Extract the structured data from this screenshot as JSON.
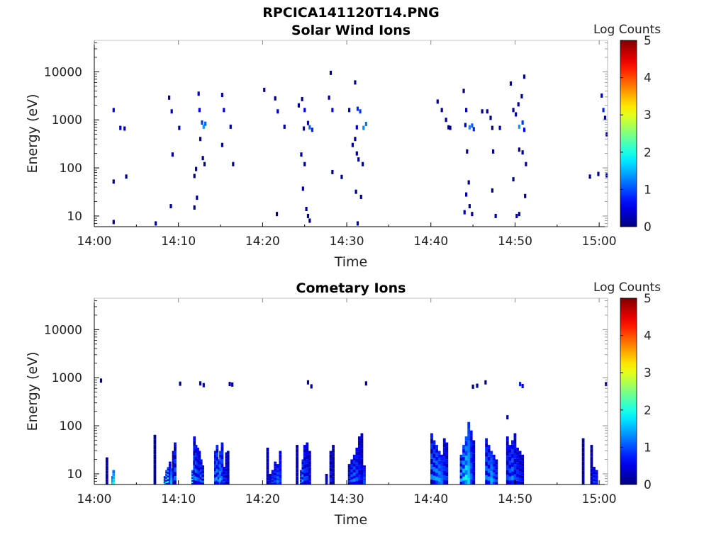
{
  "figure": {
    "title": "RPCICA141120T14.PNG"
  },
  "chart_data": [
    {
      "type": "heatmap",
      "title": "Solar Wind Ions",
      "xlabel": "Time",
      "ylabel": "Energy (eV)",
      "x_ticks": [
        "14:00",
        "14:10",
        "14:20",
        "14:30",
        "14:40",
        "14:50",
        "15:00"
      ],
      "xlim": [
        "14:00",
        "15:01"
      ],
      "y_ticks": [
        10,
        100,
        1000,
        10000
      ],
      "y_tick_labels": [
        "10",
        "100",
        "1000",
        "10000"
      ],
      "yscale": "log",
      "ylim": [
        6,
        45000
      ],
      "colorbar": {
        "label": "Log Counts",
        "ticks": [
          0,
          1,
          2,
          3,
          4,
          5
        ],
        "range": [
          0,
          5
        ],
        "colormap": "jet"
      },
      "x_units": "minutes after 14:00",
      "cells": [
        [
          2.3,
          1600,
          0.6
        ],
        [
          2.3,
          52,
          0.1
        ],
        [
          2.3,
          7.5,
          0.1
        ],
        [
          3.1,
          680,
          0.3
        ],
        [
          3.6,
          660,
          0.2
        ],
        [
          3.8,
          66,
          0.1
        ],
        [
          7.3,
          7,
          0.1
        ],
        [
          8.9,
          2900,
          0.1
        ],
        [
          9.2,
          1500,
          0.3
        ],
        [
          9.1,
          16,
          0.2
        ],
        [
          9.3,
          190,
          0.1
        ],
        [
          10.1,
          680,
          0.2
        ],
        [
          11.9,
          68,
          0.1
        ],
        [
          11.9,
          15,
          0.1
        ],
        [
          12.1,
          95,
          0.2
        ],
        [
          12.2,
          24,
          0.2
        ],
        [
          12.4,
          3500,
          0.4
        ],
        [
          12.5,
          1600,
          0.5
        ],
        [
          12.8,
          880,
          0.9
        ],
        [
          13.0,
          720,
          1.4
        ],
        [
          13.2,
          830,
          1.1
        ],
        [
          12.6,
          400,
          0.1
        ],
        [
          12.9,
          160,
          0.1
        ],
        [
          13.1,
          120,
          0.1
        ],
        [
          15.2,
          3300,
          0.3
        ],
        [
          15.4,
          1600,
          0.5
        ],
        [
          15.2,
          300,
          0.1
        ],
        [
          16.2,
          720,
          0.2
        ],
        [
          16.5,
          120,
          0.1
        ],
        [
          20.2,
          4200,
          0.1
        ],
        [
          21.5,
          2800,
          0.1
        ],
        [
          21.8,
          1500,
          0.4
        ],
        [
          21.7,
          11,
          0.1
        ],
        [
          22.6,
          720,
          0.2
        ],
        [
          24.3,
          2000,
          0.1
        ],
        [
          24.7,
          2700,
          0.2
        ],
        [
          25.0,
          1600,
          0.6
        ],
        [
          24.9,
          660,
          0.3
        ],
        [
          25.4,
          860,
          0.6
        ],
        [
          25.6,
          700,
          1.1
        ],
        [
          25.9,
          620,
          0.8
        ],
        [
          24.6,
          190,
          0.1
        ],
        [
          25.0,
          120,
          0.1
        ],
        [
          24.8,
          37,
          0.1
        ],
        [
          25.2,
          14,
          0.2
        ],
        [
          25.4,
          10,
          0.1
        ],
        [
          25.6,
          8,
          0.1
        ],
        [
          27.9,
          2900,
          0.2
        ],
        [
          28.3,
          1600,
          0.6
        ],
        [
          28.1,
          9500,
          0.1
        ],
        [
          28.3,
          82,
          0.1
        ],
        [
          29.4,
          65,
          0.1
        ],
        [
          30.3,
          1600,
          0.3
        ],
        [
          30.7,
          300,
          0.1
        ],
        [
          31.3,
          1700,
          0.8
        ],
        [
          31.6,
          1500,
          0.9
        ],
        [
          31.2,
          700,
          0.4
        ],
        [
          31.0,
          6000,
          0.1
        ],
        [
          31.2,
          200,
          0.1
        ],
        [
          31.4,
          150,
          0.1
        ],
        [
          31.1,
          32,
          0.1
        ],
        [
          31.7,
          25,
          0.1
        ],
        [
          31.9,
          120,
          0.1
        ],
        [
          32.0,
          680,
          1.3
        ],
        [
          32.3,
          820,
          1.2
        ],
        [
          31.3,
          7,
          0.2
        ],
        [
          31.0,
          400,
          0.1
        ],
        [
          40.8,
          2400,
          0.1
        ],
        [
          41.3,
          1600,
          0.1
        ],
        [
          41.8,
          1000,
          0.1
        ],
        [
          42.1,
          700,
          0.2
        ],
        [
          42.3,
          680,
          0.1
        ],
        [
          43.9,
          4000,
          0.1
        ],
        [
          44.2,
          1600,
          0.3
        ],
        [
          44.1,
          780,
          0.4
        ],
        [
          44.6,
          700,
          1.3
        ],
        [
          44.9,
          760,
          1.1
        ],
        [
          45.1,
          640,
          0.8
        ],
        [
          44.3,
          220,
          0.1
        ],
        [
          44.5,
          50,
          0.1
        ],
        [
          44.2,
          28,
          0.2
        ],
        [
          44.0,
          12,
          0.3
        ],
        [
          44.6,
          16,
          0.2
        ],
        [
          44.9,
          11,
          0.1
        ],
        [
          46.1,
          1500,
          0.1
        ],
        [
          46.7,
          1500,
          0.1
        ],
        [
          47.1,
          1100,
          0.1
        ],
        [
          47.3,
          680,
          0.2
        ],
        [
          47.4,
          220,
          0.1
        ],
        [
          47.3,
          34,
          0.1
        ],
        [
          47.7,
          10,
          0.2
        ],
        [
          48.2,
          680,
          0.2
        ],
        [
          49.5,
          5700,
          0.2
        ],
        [
          49.8,
          1600,
          0.1
        ],
        [
          50.1,
          1300,
          0.2
        ],
        [
          50.4,
          2100,
          0.1
        ],
        [
          50.8,
          3100,
          0.1
        ],
        [
          51.1,
          7900,
          0.1
        ],
        [
          50.5,
          720,
          1.4
        ],
        [
          50.9,
          880,
          0.9
        ],
        [
          51.1,
          620,
          0.6
        ],
        [
          50.5,
          240,
          0.1
        ],
        [
          50.9,
          210,
          0.1
        ],
        [
          51.3,
          120,
          0.1
        ],
        [
          51.2,
          26,
          0.1
        ],
        [
          50.2,
          10,
          0.3
        ],
        [
          50.5,
          11,
          0.2
        ],
        [
          49.8,
          58,
          0.1
        ],
        [
          58.9,
          66,
          0.1
        ],
        [
          59.9,
          75,
          0.1
        ],
        [
          60.3,
          3200,
          0.4
        ],
        [
          60.5,
          1600,
          0.8
        ],
        [
          60.7,
          1100,
          0.2
        ],
        [
          60.9,
          500,
          0.1
        ],
        [
          60.9,
          70,
          0.1
        ]
      ]
    },
    {
      "type": "heatmap",
      "title": "Cometary Ions",
      "xlabel": "Time",
      "ylabel": "Energy (eV)",
      "x_ticks": [
        "14:00",
        "14:10",
        "14:20",
        "14:30",
        "14:40",
        "14:50",
        "15:00"
      ],
      "xlim": [
        "14:00",
        "15:01"
      ],
      "y_ticks": [
        10,
        100,
        1000,
        10000
      ],
      "y_tick_labels": [
        "10",
        "100",
        "1000",
        "10000"
      ],
      "yscale": "log",
      "ylim": [
        6,
        45000
      ],
      "colorbar": {
        "label": "Log Counts",
        "ticks": [
          0,
          1,
          2,
          3,
          4,
          5
        ],
        "range": [
          0,
          5
        ],
        "colormap": "jet"
      },
      "x_units": "minutes after 14:00",
      "columns": [
        [
          1.5,
          22,
          0.3,
          0.2
        ],
        [
          2.2,
          9,
          1.6,
          1.0
        ],
        [
          2.3,
          12,
          2.2,
          1.8
        ],
        [
          7.2,
          65,
          0.1,
          0.1
        ],
        [
          8.4,
          9,
          1.8,
          0.1
        ],
        [
          8.6,
          12,
          1.9,
          0.4
        ],
        [
          8.8,
          14,
          2.2,
          0.5
        ],
        [
          9.0,
          18,
          0.9,
          0.6
        ],
        [
          9.2,
          13,
          1.8,
          1.7
        ],
        [
          9.4,
          30,
          0.8,
          0.2
        ],
        [
          9.6,
          45,
          1.2,
          0.3
        ],
        [
          11.7,
          12,
          2.0,
          0.3
        ],
        [
          11.9,
          60,
          1.2,
          0.2
        ],
        [
          12.1,
          40,
          1.4,
          0.5
        ],
        [
          12.3,
          35,
          1.1,
          0.6
        ],
        [
          12.5,
          30,
          1.0,
          0.4
        ],
        [
          12.7,
          20,
          1.3,
          0.5
        ],
        [
          12.9,
          15,
          1.2,
          0.3
        ],
        [
          14.4,
          30,
          1.3,
          0.4
        ],
        [
          14.6,
          40,
          1.5,
          0.5
        ],
        [
          14.8,
          20,
          1.4,
          0.6
        ],
        [
          15.0,
          30,
          1.7,
          1.2
        ],
        [
          15.2,
          45,
          1.3,
          0.7
        ],
        [
          15.4,
          14,
          1.0,
          0.4
        ],
        [
          15.7,
          28,
          0.8,
          0.2
        ],
        [
          15.9,
          30,
          0.5,
          0.2
        ],
        [
          20.6,
          35,
          0.3,
          0.1
        ],
        [
          20.9,
          10,
          0.8,
          0.1
        ],
        [
          21.2,
          12,
          1.0,
          0.3
        ],
        [
          21.5,
          18,
          1.0,
          0.6
        ],
        [
          21.8,
          16,
          1.3,
          0.9
        ],
        [
          22.1,
          30,
          0.9,
          0.7
        ],
        [
          24.1,
          40,
          0.3,
          0.2
        ],
        [
          24.6,
          12,
          1.3,
          0.3
        ],
        [
          24.8,
          20,
          1.6,
          0.5
        ],
        [
          25.0,
          40,
          1.0,
          0.4
        ],
        [
          25.3,
          45,
          0.9,
          0.5
        ],
        [
          25.6,
          30,
          0.5,
          0.3
        ],
        [
          27.6,
          10,
          0.8,
          0.1
        ],
        [
          28.1,
          30,
          0.8,
          0.1
        ],
        [
          28.4,
          40,
          0.4,
          0.1
        ],
        [
          30.3,
          16,
          0.9,
          0.2
        ],
        [
          30.6,
          20,
          1.2,
          0.4
        ],
        [
          30.9,
          25,
          1.3,
          0.5
        ],
        [
          31.2,
          35,
          1.1,
          0.6
        ],
        [
          31.5,
          60,
          0.8,
          0.4
        ],
        [
          31.8,
          70,
          0.6,
          0.3
        ],
        [
          32.1,
          15,
          1.0,
          0.9
        ],
        [
          40.1,
          70,
          1.3,
          0.2
        ],
        [
          40.4,
          50,
          1.4,
          0.5
        ],
        [
          40.7,
          40,
          1.5,
          0.8
        ],
        [
          41.0,
          30,
          1.5,
          1.1
        ],
        [
          41.3,
          25,
          1.2,
          1.2
        ],
        [
          41.6,
          55,
          1.0,
          0.5
        ],
        [
          41.9,
          45,
          0.9,
          0.3
        ],
        [
          43.6,
          25,
          1.6,
          0.6
        ],
        [
          43.9,
          40,
          1.8,
          0.9
        ],
        [
          44.2,
          60,
          2.0,
          1.3
        ],
        [
          44.5,
          120,
          1.6,
          1.7
        ],
        [
          44.8,
          80,
          1.2,
          0.8
        ],
        [
          45.1,
          50,
          0.7,
          0.4
        ],
        [
          46.6,
          55,
          1.3,
          0.4
        ],
        [
          46.9,
          40,
          1.4,
          0.6
        ],
        [
          47.2,
          30,
          1.6,
          1.4
        ],
        [
          47.5,
          25,
          1.3,
          0.8
        ],
        [
          47.8,
          20,
          1.0,
          0.3
        ],
        [
          49.1,
          60,
          1.0,
          0.3
        ],
        [
          49.4,
          40,
          1.2,
          0.5
        ],
        [
          49.7,
          50,
          1.4,
          0.7
        ],
        [
          50.0,
          70,
          1.0,
          0.4
        ],
        [
          50.3,
          35,
          0.9,
          0.5
        ],
        [
          50.6,
          30,
          0.8,
          0.3
        ],
        [
          50.9,
          25,
          0.6,
          0.2
        ],
        [
          58.1,
          55,
          0.3,
          0.1
        ],
        [
          59.1,
          40,
          0.4,
          0.1
        ],
        [
          59.4,
          14,
          1.0,
          0.6
        ],
        [
          59.7,
          12,
          0.8,
          0.4
        ]
      ],
      "cells": [
        [
          0.8,
          870,
          0.2
        ],
        [
          10.2,
          750,
          0.1
        ],
        [
          12.6,
          760,
          0.3
        ],
        [
          13.0,
          700,
          0.3
        ],
        [
          16.1,
          740,
          0.2
        ],
        [
          16.4,
          720,
          0.1
        ],
        [
          25.4,
          800,
          0.2
        ],
        [
          25.8,
          660,
          0.1
        ],
        [
          32.3,
          760,
          0.2
        ],
        [
          45.0,
          650,
          0.1
        ],
        [
          45.5,
          680,
          0.1
        ],
        [
          46.5,
          800,
          0.1
        ],
        [
          49.1,
          150,
          0.1
        ],
        [
          50.6,
          740,
          0.8
        ],
        [
          50.9,
          670,
          0.5
        ],
        [
          60.8,
          740,
          0.2
        ]
      ]
    }
  ]
}
